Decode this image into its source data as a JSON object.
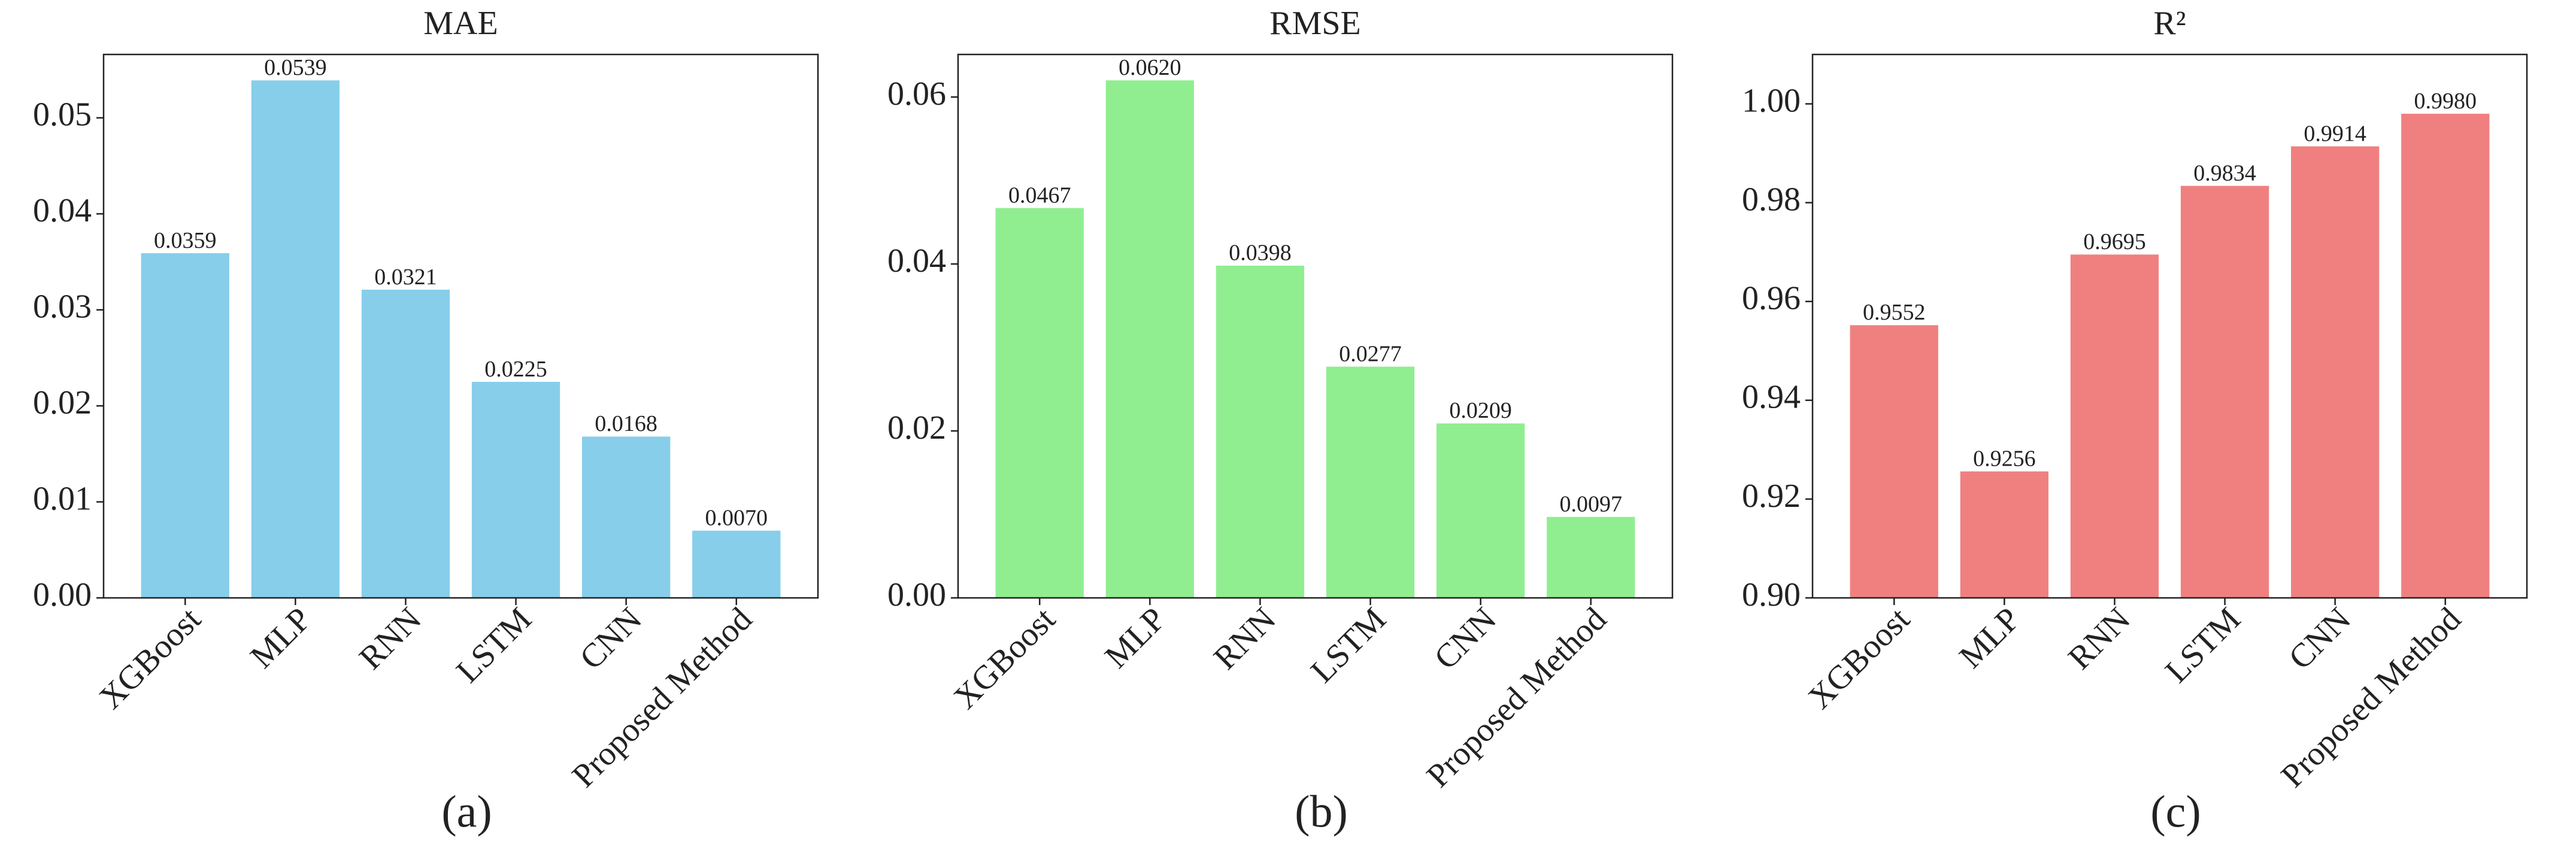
{
  "chart_data": [
    {
      "type": "bar",
      "title": "MAE",
      "caption": "(a)",
      "color": "#87ceeb",
      "categories": [
        "XGBoost",
        "MLP",
        "RNN",
        "LSTM",
        "CNN",
        "Proposed Method"
      ],
      "values": [
        0.0359,
        0.0539,
        0.0321,
        0.0225,
        0.0168,
        0.007
      ],
      "value_labels": [
        "0.0359",
        "0.0539",
        "0.0321",
        "0.0225",
        "0.0168",
        "0.0070"
      ],
      "ylim": [
        0,
        0.0566
      ],
      "yticks": [
        {
          "value": 0,
          "label": "0.00"
        },
        {
          "value": 0.01,
          "label": "0.01"
        },
        {
          "value": 0.02,
          "label": "0.02"
        },
        {
          "value": 0.03,
          "label": "0.03"
        },
        {
          "value": 0.04,
          "label": "0.04"
        },
        {
          "value": 0.05,
          "label": "0.05"
        }
      ]
    },
    {
      "type": "bar",
      "title": "RMSE",
      "caption": "(b)",
      "color": "#90ee90",
      "categories": [
        "XGBoost",
        "MLP",
        "RNN",
        "LSTM",
        "CNN",
        "Proposed Method"
      ],
      "values": [
        0.0467,
        0.062,
        0.0398,
        0.0277,
        0.0209,
        0.0097
      ],
      "value_labels": [
        "0.0467",
        "0.0620",
        "0.0398",
        "0.0277",
        "0.0209",
        "0.0097"
      ],
      "ylim": [
        0,
        0.0651
      ],
      "yticks": [
        {
          "value": 0,
          "label": "0.00"
        },
        {
          "value": 0.02,
          "label": "0.02"
        },
        {
          "value": 0.04,
          "label": "0.04"
        },
        {
          "value": 0.06,
          "label": "0.06"
        }
      ]
    },
    {
      "type": "bar",
      "title": "R²",
      "caption": "(c)",
      "color": "#f08080",
      "categories": [
        "XGBoost",
        "MLP",
        "RNN",
        "LSTM",
        "CNN",
        "Proposed Method"
      ],
      "values": [
        0.9552,
        0.9256,
        0.9695,
        0.9834,
        0.9914,
        0.998
      ],
      "value_labels": [
        "0.9552",
        "0.9256",
        "0.9695",
        "0.9834",
        "0.9914",
        "0.9980"
      ],
      "ylim": [
        0.9,
        1.01
      ],
      "yticks": [
        {
          "value": 0.9,
          "label": "0.90"
        },
        {
          "value": 0.92,
          "label": "0.92"
        },
        {
          "value": 0.94,
          "label": "0.94"
        },
        {
          "value": 0.96,
          "label": "0.96"
        },
        {
          "value": 0.98,
          "label": "0.98"
        },
        {
          "value": 1.0,
          "label": "1.00"
        }
      ]
    }
  ]
}
